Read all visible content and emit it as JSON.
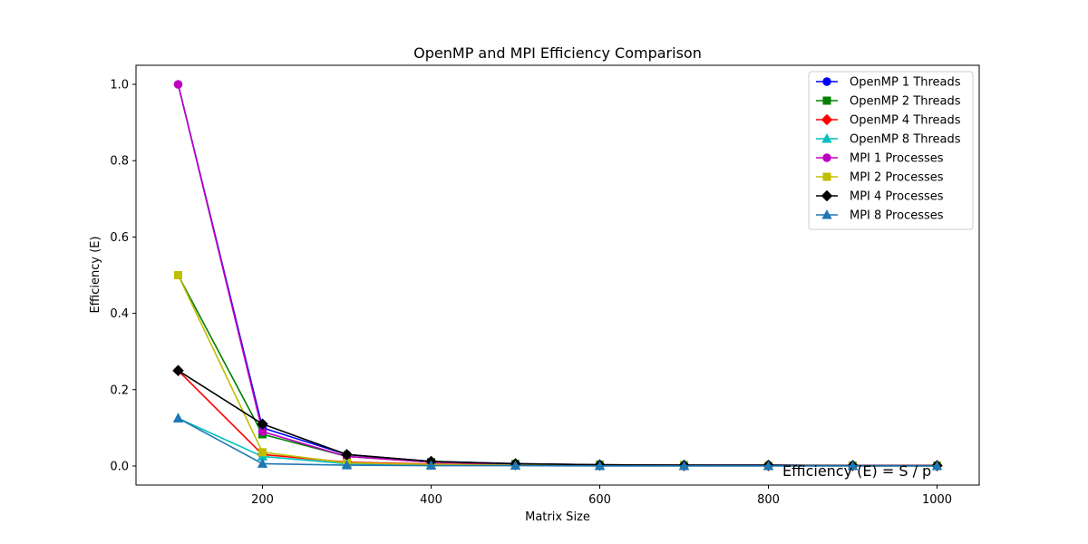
{
  "chart_data": {
    "type": "line",
    "title": "OpenMP and MPI Efficiency Comparison",
    "xlabel": "Matrix Size",
    "ylabel": "Efficiency (E)",
    "xlim": [
      50,
      1050
    ],
    "ylim": [
      -0.05,
      1.05
    ],
    "xticks": [
      200,
      400,
      600,
      800,
      1000
    ],
    "xtick_labels": [
      "200",
      "400",
      "600",
      "800",
      "1000"
    ],
    "yticks": [
      0.0,
      0.2,
      0.4,
      0.6,
      0.8,
      1.0
    ],
    "ytick_labels": [
      "0.0",
      "0.2",
      "0.4",
      "0.6",
      "0.8",
      "1.0"
    ],
    "grid": false,
    "legend_position": "top-right",
    "x": [
      100,
      200,
      300,
      400,
      500,
      600,
      700,
      800,
      900,
      1000
    ],
    "series": [
      {
        "name": "OpenMP 1 Threads",
        "color": "#0000ff",
        "marker": "circle",
        "values": [
          1.0,
          0.1,
          0.03,
          0.012,
          0.006,
          0.003,
          0.002,
          0.002,
          0.001,
          0.001
        ]
      },
      {
        "name": "OpenMP 2 Threads",
        "color": "#008000",
        "marker": "square",
        "values": [
          0.5,
          0.083,
          0.025,
          0.01,
          0.005,
          0.003,
          0.002,
          0.001,
          0.001,
          0.001
        ]
      },
      {
        "name": "OpenMP 4 Threads",
        "color": "#ff0000",
        "marker": "diamond",
        "values": [
          0.25,
          0.03,
          0.01,
          0.005,
          0.003,
          0.002,
          0.001,
          0.001,
          0.001,
          0.001
        ]
      },
      {
        "name": "OpenMP 8 Threads",
        "color": "#00bfbf",
        "marker": "triangle",
        "values": [
          0.125,
          0.025,
          0.006,
          0.003,
          0.002,
          0.001,
          0.001,
          0.001,
          0.001,
          0.0
        ]
      },
      {
        "name": "MPI 1 Processes",
        "color": "#bf00bf",
        "marker": "circle",
        "values": [
          1.0,
          0.09,
          0.025,
          0.01,
          0.005,
          0.003,
          0.002,
          0.001,
          0.001,
          0.001
        ]
      },
      {
        "name": "MPI 2 Processes",
        "color": "#bfbf00",
        "marker": "square",
        "values": [
          0.5,
          0.036,
          0.008,
          0.004,
          0.002,
          0.001,
          0.001,
          0.001,
          0.0,
          0.0
        ]
      },
      {
        "name": "MPI 4 Processes",
        "color": "#000000",
        "marker": "diamond",
        "values": [
          0.25,
          0.11,
          0.03,
          0.012,
          0.006,
          0.003,
          0.002,
          0.002,
          0.001,
          0.001
        ]
      },
      {
        "name": "MPI 8 Processes",
        "color": "#1f77b4",
        "marker": "triangle",
        "values": [
          0.125,
          0.006,
          0.002,
          0.001,
          0.001,
          0.0,
          0.0,
          0.0,
          0.0,
          0.0
        ]
      }
    ],
    "annotation": "Efficiency (E) = S / p"
  }
}
